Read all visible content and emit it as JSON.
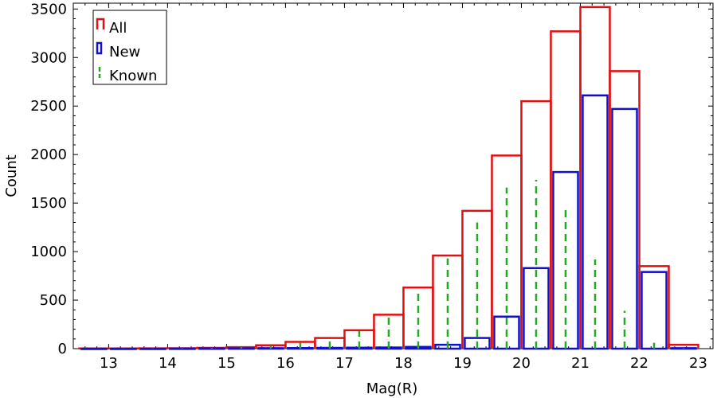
{
  "chart_data": {
    "type": "bar",
    "xlabel": "Mag(R)",
    "ylabel": "Count",
    "xlim": [
      12.4,
      23.25
    ],
    "ylim": [
      0,
      3560
    ],
    "x_ticks": [
      13,
      14,
      15,
      16,
      17,
      18,
      19,
      20,
      21,
      22,
      23
    ],
    "y_ticks": [
      0,
      500,
      1000,
      1500,
      2000,
      2500,
      3000,
      3500
    ],
    "bin_width": 0.5,
    "bin_starts": [
      12.5,
      13.0,
      13.5,
      14.0,
      14.5,
      15.0,
      15.5,
      16.0,
      16.5,
      17.0,
      17.5,
      18.0,
      18.5,
      19.0,
      19.5,
      20.0,
      20.5,
      21.0,
      21.5,
      22.0,
      22.5
    ],
    "legend_position": "top-left",
    "series": [
      {
        "name": "All",
        "style": "step",
        "color": "#dd1111",
        "values": [
          2,
          2,
          3,
          4,
          8,
          15,
          35,
          70,
          110,
          190,
          350,
          630,
          960,
          1420,
          1990,
          2550,
          3270,
          3520,
          2860,
          850,
          40
        ]
      },
      {
        "name": "New",
        "style": "bar",
        "color": "#1111cc",
        "values": [
          0,
          0,
          0,
          1,
          2,
          3,
          5,
          6,
          8,
          10,
          12,
          18,
          40,
          110,
          330,
          830,
          1820,
          2610,
          2470,
          790,
          5
        ]
      },
      {
        "name": "Known",
        "style": "dashed",
        "color": "#22aa22",
        "values": [
          1,
          2,
          3,
          4,
          8,
          15,
          30,
          60,
          100,
          180,
          340,
          610,
          930,
          1300,
          1660,
          1740,
          1440,
          920,
          390,
          60,
          5
        ]
      }
    ]
  }
}
